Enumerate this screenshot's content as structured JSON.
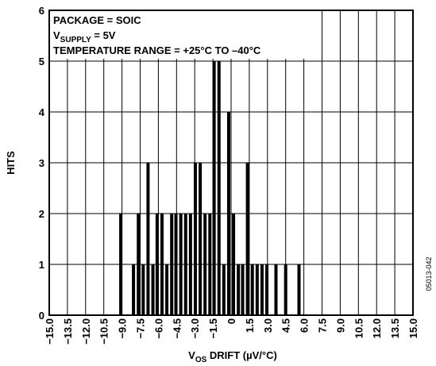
{
  "chart_data": {
    "type": "bar",
    "xlabel": "V",
    "xlabel_sub": "OS",
    "xlabel_rest": " DRIFT (µV/°C)",
    "ylabel": "HITS",
    "xlim": [
      -15,
      15
    ],
    "ylim": [
      0,
      6
    ],
    "grid": true,
    "x_ticks": [
      "−15.0",
      "−13.5",
      "−12.0",
      "−10.5",
      "−9.0",
      "−7.5",
      "−6.0",
      "−4.5",
      "−3.0",
      "−1.5",
      "0",
      "1.5",
      "3.0",
      "4.5",
      "6.0",
      "7.5",
      "9.0",
      "10.5",
      "12.0",
      "13.5",
      "15.0"
    ],
    "y_ticks": [
      "0",
      "1",
      "2",
      "3",
      "4",
      "5",
      "6"
    ],
    "annotations": {
      "line1": "PACKAGE = SOIC",
      "line2_main": "V",
      "line2_sub": "SUPPLY",
      "line2_rest": " = 5V",
      "line3": "TEMPERATURE RANGE = +25°C TO –40°C"
    },
    "figure_id": "05013-042",
    "bars": [
      {
        "x": -9.1,
        "value": 2
      },
      {
        "x": -8.05,
        "value": 1
      },
      {
        "x": -7.65,
        "value": 2
      },
      {
        "x": -7.25,
        "value": 1
      },
      {
        "x": -6.85,
        "value": 3
      },
      {
        "x": -6.45,
        "value": 1
      },
      {
        "x": -6.1,
        "value": 2
      },
      {
        "x": -5.7,
        "value": 2
      },
      {
        "x": -5.3,
        "value": 1
      },
      {
        "x": -4.9,
        "value": 2
      },
      {
        "x": -4.55,
        "value": 2
      },
      {
        "x": -4.15,
        "value": 2
      },
      {
        "x": -3.75,
        "value": 2
      },
      {
        "x": -3.35,
        "value": 2
      },
      {
        "x": -2.95,
        "value": 3
      },
      {
        "x": -2.55,
        "value": 3
      },
      {
        "x": -2.15,
        "value": 2
      },
      {
        "x": -1.75,
        "value": 2
      },
      {
        "x": -1.4,
        "value": 5
      },
      {
        "x": -1.0,
        "value": 5
      },
      {
        "x": -0.6,
        "value": 1
      },
      {
        "x": -0.2,
        "value": 4
      },
      {
        "x": 0.2,
        "value": 2
      },
      {
        "x": 0.6,
        "value": 1
      },
      {
        "x": 0.95,
        "value": 1
      },
      {
        "x": 1.35,
        "value": 3
      },
      {
        "x": 1.75,
        "value": 1
      },
      {
        "x": 2.15,
        "value": 1
      },
      {
        "x": 2.55,
        "value": 1
      },
      {
        "x": 2.95,
        "value": 1
      },
      {
        "x": 3.7,
        "value": 1
      },
      {
        "x": 4.5,
        "value": 1
      },
      {
        "x": 5.6,
        "value": 1
      }
    ]
  }
}
